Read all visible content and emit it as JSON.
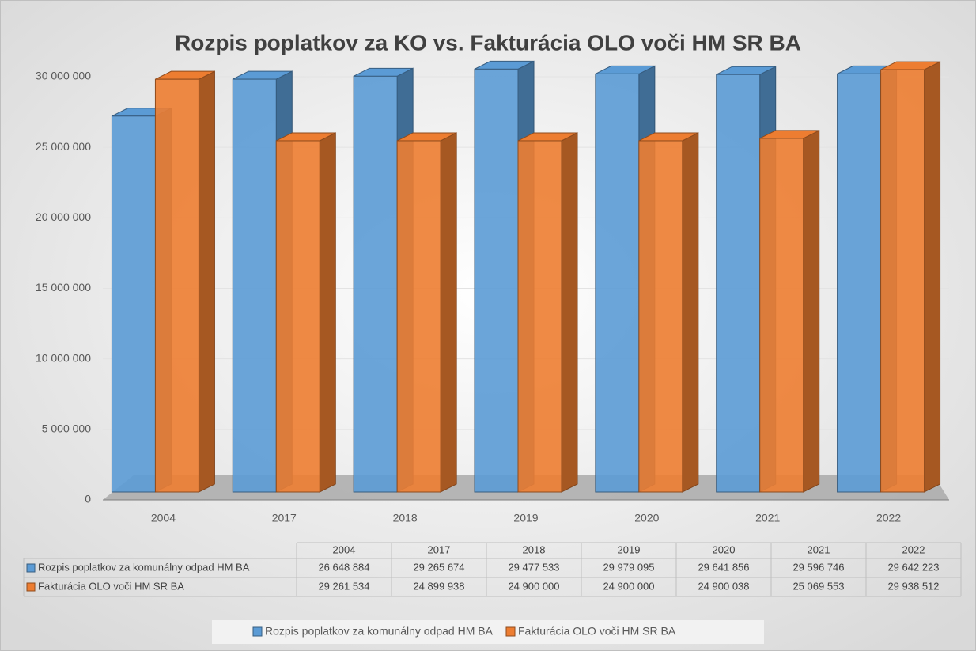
{
  "chart_data": {
    "type": "bar",
    "title": "Rozpis poplatkov za KO vs. Fakturácia OLO voči HM SR BA",
    "categories": [
      "2004",
      "2017",
      "2018",
      "2019",
      "2020",
      "2021",
      "2022"
    ],
    "series": [
      {
        "name": "Rozpis poplatkov za komunálny odpad HM BA",
        "color": "#5b9bd5",
        "values": [
          26648884,
          29265674,
          29477533,
          29979095,
          29641856,
          29596746,
          29642223
        ],
        "value_labels": [
          "26 648 884",
          "29 265 674",
          "29 477 533",
          "29 979 095",
          "29 641 856",
          "29 596 746",
          "29 642 223"
        ]
      },
      {
        "name": "Fakturácia OLO voči HM SR BA",
        "color": "#ed7d31",
        "values": [
          29261534,
          24899938,
          24900000,
          24900000,
          24900038,
          25069553,
          29938512
        ],
        "value_labels": [
          "29 261 534",
          "24 899 938",
          "24 900 000",
          "24 900 000",
          "24 900 038",
          "25 069 553",
          "29 938 512"
        ]
      }
    ],
    "ylim": [
      0,
      30000000
    ],
    "yticks": [
      0,
      {
        "value": 5000000,
        "label": "5 000 000"
      },
      {
        "value": 10000000,
        "label": "10 000 000"
      },
      {
        "value": 15000000,
        "label": "15 000 000"
      },
      {
        "value": 20000000,
        "label": "20 000 000"
      },
      {
        "value": 25000000,
        "label": "25 000 000"
      },
      {
        "value": 30000000,
        "label": "30 000 000"
      }
    ],
    "grid": true,
    "legend": "bottom",
    "data_table": true
  }
}
